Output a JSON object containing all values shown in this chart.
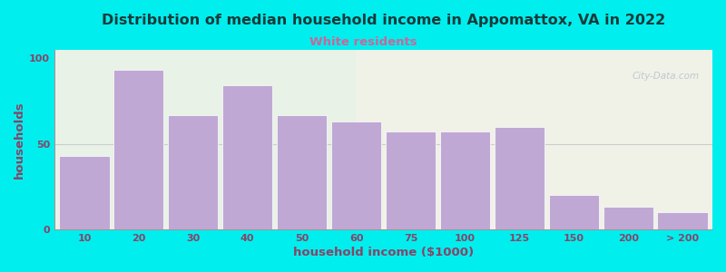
{
  "title": "Distribution of median household income in Appomattox, VA in 2022",
  "subtitle": "White residents",
  "xlabel": "household income ($1000)",
  "ylabel": "households",
  "background_outer": "#00EEEE",
  "bar_color": "#c0a8d4",
  "bar_edge_color": "#ffffff",
  "title_color": "#1a3a3a",
  "subtitle_color": "#cc6699",
  "axis_label_color": "#884466",
  "tick_label_color": "#884466",
  "watermark": "City-Data.com",
  "categories": [
    "10",
    "20",
    "30",
    "40",
    "50",
    "60",
    "75",
    "100",
    "125",
    "150",
    "200",
    "> 200"
  ],
  "values": [
    43,
    93,
    67,
    84,
    67,
    63,
    57,
    57,
    60,
    20,
    13,
    10
  ],
  "ylim": [
    0,
    105
  ],
  "yticks": [
    0,
    50,
    100
  ],
  "hline_color": "#cccccc",
  "bg_left_color": "#e6f2e6",
  "bg_right_color": "#f0f2e8"
}
